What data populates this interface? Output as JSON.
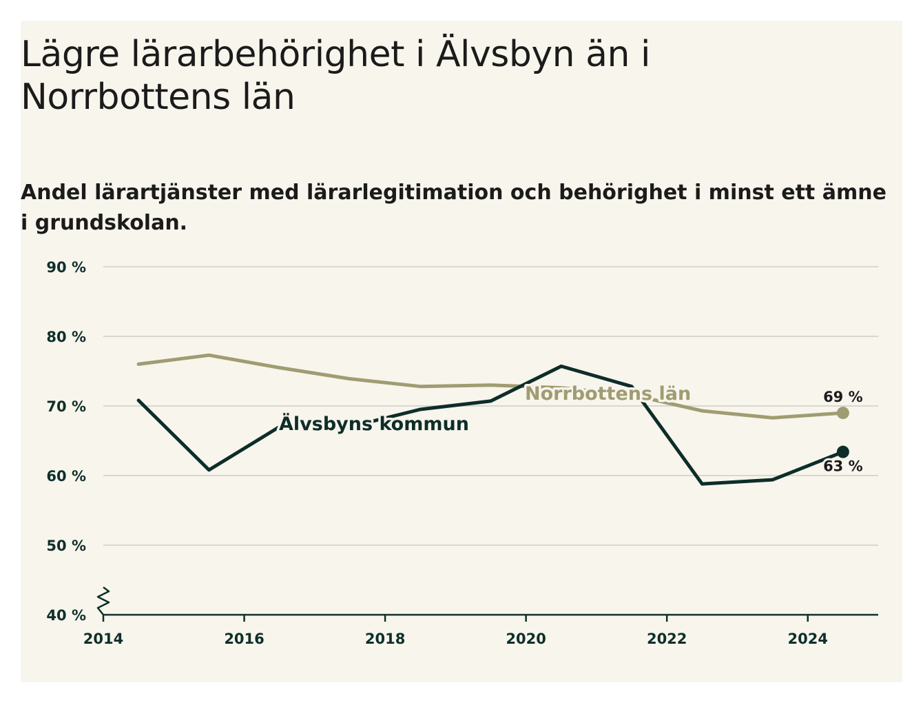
{
  "title": "Lägre lärarbehörighet i Älvsbyn än i Norrbottens län",
  "subtitle": "Andel lärartjänster med lärarlegitimation och behörighet i minst ett ämne i grundskolan.",
  "colors": {
    "background": "#f7f5ec",
    "alvsbyn": "#0e2d29",
    "norrbotten": "#a09c72",
    "grid": "#d9d7d0",
    "axis": "#0f2f2a"
  },
  "chart_data": {
    "type": "line",
    "title": "Lägre lärarbehörighet i Älvsbyn än i Norrbottens län",
    "subtitle": "Andel lärartjänster med lärarlegitimation och behörighet i minst ett ämne i grundskolan.",
    "xlabel": "",
    "ylabel": "",
    "xlim": [
      2014,
      2025
    ],
    "ylim": [
      40,
      90
    ],
    "x_ticks": [
      2014,
      2016,
      2018,
      2020,
      2022,
      2024
    ],
    "x_tick_labels": [
      "2014",
      "2016",
      "2018",
      "2020",
      "2022",
      "2024"
    ],
    "y_ticks": [
      40,
      50,
      60,
      70,
      80,
      90
    ],
    "y_tick_labels": [
      "40 %",
      "50 %",
      "60 %",
      "70 %",
      "80 %",
      "90 %"
    ],
    "grid": true,
    "axis_break": true,
    "x": [
      2014.5,
      2015.5,
      2016.5,
      2017.5,
      2018.5,
      2019.5,
      2020.5,
      2021.5,
      2022.5,
      2023.5,
      2024.5
    ],
    "series": [
      {
        "name": "Norrbottens län",
        "color": "#a09c72",
        "values": [
          76.0,
          77.3,
          75.5,
          73.9,
          72.8,
          73.0,
          72.6,
          71.6,
          69.3,
          68.3,
          69.0
        ],
        "end_label": "69 %"
      },
      {
        "name": "Älvsbyns kommun",
        "color": "#0e2d29",
        "values": [
          70.8,
          60.8,
          67.0,
          67.0,
          69.5,
          70.7,
          75.7,
          72.8,
          58.8,
          59.4,
          63.4
        ],
        "end_label": "63 %"
      }
    ]
  }
}
